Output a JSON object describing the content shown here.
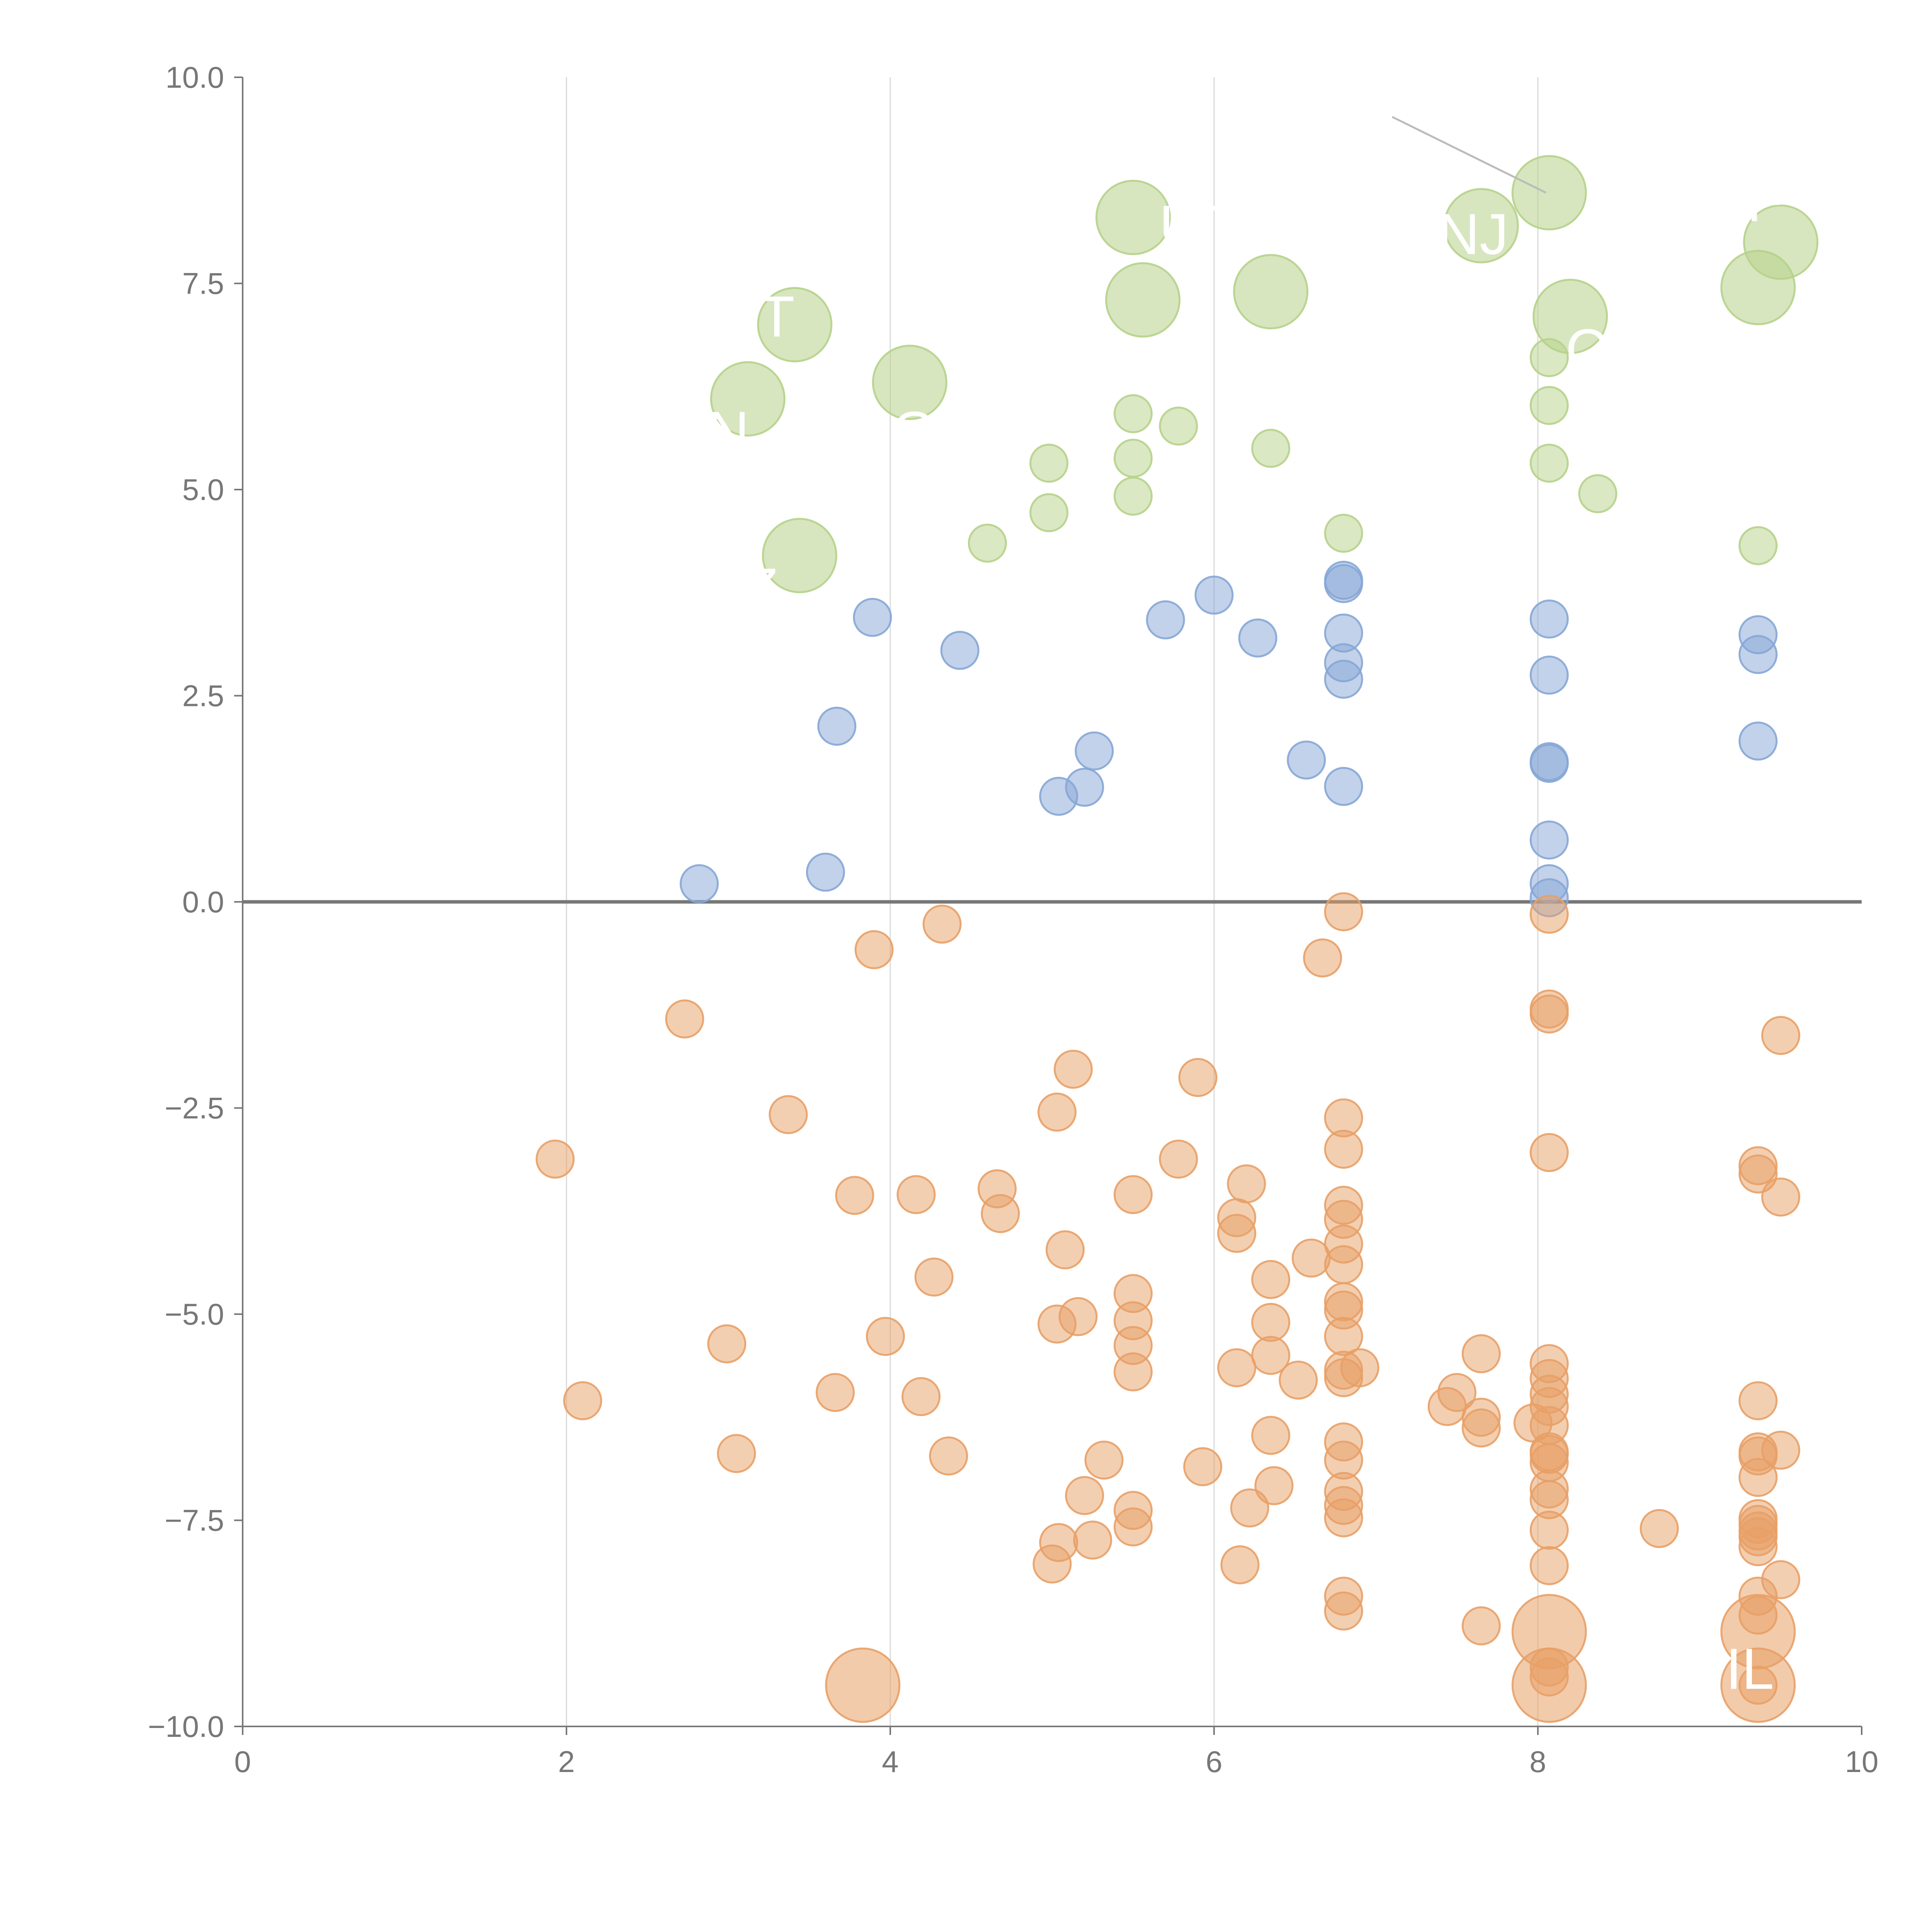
{
  "chart_data": {
    "type": "scatter",
    "title": "",
    "xlabel": "",
    "ylabel": "",
    "xlim": [
      0,
      10
    ],
    "ylim": [
      -10,
      10
    ],
    "xticks": [
      "0",
      "2",
      "4",
      "6",
      "8",
      "10"
    ],
    "yticks": [
      "−10.0",
      "−7.5",
      "−5.0",
      "−2.5",
      "0.0",
      "2.5",
      "5.0",
      "7.5",
      "10.0"
    ],
    "grid": "vertical gridlines at x tick positions",
    "reference_line": {
      "y": 0
    },
    "colors": {
      "green": "#b6d18a",
      "blue": "#86a6d6",
      "orange": "#e8a066"
    },
    "labels": [
      {
        "text": "UT",
        "x": 5.9,
        "y": 8.2
      },
      {
        "text": "NJ",
        "x": 7.6,
        "y": 8.1
      },
      {
        "text": "F",
        "x": 9.4,
        "y": 8.5
      },
      {
        "text": "T",
        "x": 3.3,
        "y": 7.1
      },
      {
        "text": "N",
        "x": 3.0,
        "y": 5.7
      },
      {
        "text": "IO",
        "x": 4.1,
        "y": 5.7
      },
      {
        "text": "C",
        "x": 8.3,
        "y": 6.7
      },
      {
        "text": "Z",
        "x": 3.2,
        "y": 3.8
      },
      {
        "text": "FIL",
        "x": 9.2,
        "y": -9.3
      }
    ],
    "series": [
      {
        "color": "green",
        "points": [
          [
            3.12,
            6.1,
            1
          ],
          [
            3.41,
            7.0,
            1
          ],
          [
            3.44,
            4.2,
            1
          ],
          [
            4.12,
            6.3,
            1
          ],
          [
            5.5,
            8.3,
            1
          ],
          [
            5.56,
            7.3,
            1
          ],
          [
            6.35,
            7.4,
            1
          ],
          [
            7.65,
            8.2,
            1
          ],
          [
            8.07,
            8.6,
            1
          ],
          [
            8.2,
            7.1,
            1
          ],
          [
            9.36,
            7.45,
            1
          ],
          [
            9.5,
            8.0,
            1
          ],
          [
            4.6,
            4.35,
            0
          ],
          [
            4.98,
            5.32,
            0
          ],
          [
            4.98,
            4.72,
            0
          ],
          [
            5.5,
            5.92,
            0
          ],
          [
            5.5,
            5.38,
            0
          ],
          [
            5.5,
            4.92,
            0
          ],
          [
            5.78,
            5.77,
            0
          ],
          [
            6.35,
            5.5,
            0
          ],
          [
            6.8,
            4.47,
            0
          ],
          [
            8.07,
            6.6,
            0
          ],
          [
            8.07,
            6.02,
            0
          ],
          [
            8.07,
            5.32,
            0
          ],
          [
            8.37,
            4.95,
            0
          ],
          [
            9.36,
            4.32,
            0
          ]
        ]
      },
      {
        "color": "blue",
        "points": [
          [
            2.82,
            0.22,
            0
          ],
          [
            3.6,
            0.36,
            0
          ],
          [
            3.67,
            2.13,
            0
          ],
          [
            3.89,
            3.45,
            0
          ],
          [
            4.43,
            3.05,
            0
          ],
          [
            5.04,
            1.28,
            0
          ],
          [
            5.2,
            1.39,
            0
          ],
          [
            5.26,
            1.83,
            0
          ],
          [
            5.7,
            3.42,
            0
          ],
          [
            6.0,
            3.72,
            0
          ],
          [
            6.27,
            3.2,
            0
          ],
          [
            6.57,
            1.72,
            0
          ],
          [
            6.8,
            3.9,
            0
          ],
          [
            6.8,
            3.86,
            0
          ],
          [
            6.8,
            3.26,
            0
          ],
          [
            6.8,
            2.9,
            0
          ],
          [
            6.8,
            2.7,
            0
          ],
          [
            6.8,
            1.4,
            0
          ],
          [
            8.07,
            3.43,
            0
          ],
          [
            8.07,
            2.75,
            0
          ],
          [
            8.07,
            1.7,
            0
          ],
          [
            8.07,
            1.68,
            0
          ],
          [
            8.07,
            0.75,
            0
          ],
          [
            8.07,
            0.22,
            0
          ],
          [
            8.07,
            0.05,
            0
          ],
          [
            9.36,
            3.24,
            0
          ],
          [
            9.36,
            3.0,
            0
          ],
          [
            9.36,
            1.95,
            0
          ]
        ]
      },
      {
        "color": "orange",
        "points": [
          [
            1.93,
            -3.12,
            0
          ],
          [
            2.1,
            -6.05,
            0
          ],
          [
            2.73,
            -1.42,
            0
          ],
          [
            2.99,
            -5.36,
            0
          ],
          [
            3.05,
            -6.69,
            0
          ],
          [
            3.37,
            -2.58,
            0
          ],
          [
            3.66,
            -5.95,
            0
          ],
          [
            3.78,
            -3.56,
            0
          ],
          [
            3.9,
            -0.58,
            0
          ],
          [
            3.97,
            -5.27,
            0
          ],
          [
            4.16,
            -3.55,
            0
          ],
          [
            4.19,
            -6.0,
            0
          ],
          [
            4.27,
            -4.55,
            0
          ],
          [
            4.32,
            -0.27,
            0
          ],
          [
            4.36,
            -6.72,
            0
          ],
          [
            4.66,
            -3.48,
            0
          ],
          [
            4.68,
            -3.78,
            0
          ],
          [
            5.0,
            -8.03,
            0
          ],
          [
            5.03,
            -2.55,
            0
          ],
          [
            5.03,
            -5.12,
            0
          ],
          [
            5.04,
            -7.77,
            0
          ],
          [
            5.08,
            -4.22,
            0
          ],
          [
            5.13,
            -2.03,
            0
          ],
          [
            5.16,
            -5.03,
            0
          ],
          [
            5.2,
            -7.2,
            0
          ],
          [
            5.25,
            -7.74,
            0
          ],
          [
            5.32,
            -6.77,
            0
          ],
          [
            5.5,
            -3.55,
            0
          ],
          [
            5.5,
            -4.75,
            0
          ],
          [
            5.5,
            -5.08,
            0
          ],
          [
            5.5,
            -5.38,
            0
          ],
          [
            5.5,
            -5.7,
            0
          ],
          [
            5.5,
            -7.38,
            0
          ],
          [
            5.5,
            -7.58,
            0
          ],
          [
            5.78,
            -3.12,
            0
          ],
          [
            5.9,
            -2.13,
            0
          ],
          [
            5.93,
            -6.85,
            0
          ],
          [
            6.14,
            -5.65,
            0
          ],
          [
            6.14,
            -3.83,
            0
          ],
          [
            6.14,
            -4.02,
            0
          ],
          [
            6.16,
            -8.04,
            0
          ],
          [
            6.2,
            -3.42,
            0
          ],
          [
            6.22,
            -7.35,
            0
          ],
          [
            6.35,
            -4.58,
            0
          ],
          [
            6.35,
            -5.1,
            0
          ],
          [
            6.35,
            -5.5,
            0
          ],
          [
            6.35,
            -6.47,
            0
          ],
          [
            6.37,
            -7.08,
            0
          ],
          [
            6.52,
            -5.8,
            0
          ],
          [
            6.6,
            -4.32,
            0
          ],
          [
            6.67,
            -0.68,
            0
          ],
          [
            6.8,
            -0.12,
            0
          ],
          [
            6.8,
            -2.62,
            0
          ],
          [
            6.8,
            -3.0,
            0
          ],
          [
            6.8,
            -3.68,
            0
          ],
          [
            6.8,
            -3.85,
            0
          ],
          [
            6.8,
            -4.15,
            0
          ],
          [
            6.8,
            -4.4,
            0
          ],
          [
            6.8,
            -4.85,
            0
          ],
          [
            6.8,
            -4.95,
            0
          ],
          [
            6.8,
            -5.27,
            0
          ],
          [
            6.8,
            -5.68,
            0
          ],
          [
            6.8,
            -5.77,
            0
          ],
          [
            6.8,
            -6.55,
            0
          ],
          [
            6.8,
            -6.77,
            0
          ],
          [
            6.8,
            -7.15,
            0
          ],
          [
            6.8,
            -7.32,
            0
          ],
          [
            6.8,
            -7.47,
            0
          ],
          [
            6.8,
            -8.42,
            0
          ],
          [
            6.8,
            -8.6,
            0
          ],
          [
            6.9,
            -5.65,
            0
          ],
          [
            7.44,
            -6.12,
            0
          ],
          [
            7.5,
            -5.95,
            0
          ],
          [
            7.65,
            -5.48,
            0
          ],
          [
            7.65,
            -6.25,
            0
          ],
          [
            7.65,
            -6.38,
            0
          ],
          [
            7.65,
            -8.78,
            0
          ],
          [
            7.97,
            -6.32,
            0
          ],
          [
            8.07,
            -0.15,
            0
          ],
          [
            8.07,
            -1.3,
            0
          ],
          [
            8.07,
            -1.36,
            0
          ],
          [
            8.07,
            -3.04,
            0
          ],
          [
            8.07,
            -5.6,
            0
          ],
          [
            8.07,
            -5.78,
            0
          ],
          [
            8.07,
            -5.97,
            0
          ],
          [
            8.07,
            -6.12,
            0
          ],
          [
            8.07,
            -6.35,
            0
          ],
          [
            8.07,
            -6.67,
            0
          ],
          [
            8.07,
            -6.7,
            0
          ],
          [
            8.07,
            -6.8,
            0
          ],
          [
            8.07,
            -7.12,
            0
          ],
          [
            8.07,
            -7.25,
            0
          ],
          [
            8.07,
            -7.62,
            0
          ],
          [
            8.07,
            -8.05,
            0
          ],
          [
            8.07,
            -8.85,
            1
          ],
          [
            8.07,
            -9.5,
            1
          ],
          [
            8.07,
            -9.28,
            0
          ],
          [
            8.07,
            -9.4,
            0
          ],
          [
            8.75,
            -7.6,
            0
          ],
          [
            9.36,
            -3.2,
            0
          ],
          [
            9.36,
            -3.3,
            0
          ],
          [
            9.36,
            -6.05,
            0
          ],
          [
            9.36,
            -6.67,
            0
          ],
          [
            9.36,
            -6.72,
            0
          ],
          [
            9.36,
            -6.98,
            0
          ],
          [
            9.36,
            -7.48,
            0
          ],
          [
            9.36,
            -7.55,
            0
          ],
          [
            9.36,
            -7.63,
            0
          ],
          [
            9.36,
            -7.7,
            0
          ],
          [
            9.36,
            -7.82,
            0
          ],
          [
            9.36,
            -8.42,
            0
          ],
          [
            9.36,
            -8.65,
            0
          ],
          [
            9.36,
            -8.85,
            1
          ],
          [
            9.36,
            -9.5,
            1
          ],
          [
            9.36,
            -9.5,
            0
          ],
          [
            9.5,
            -1.62,
            0
          ],
          [
            9.5,
            -3.58,
            0
          ],
          [
            9.5,
            -6.65,
            0
          ],
          [
            9.5,
            -8.22,
            0
          ],
          [
            3.83,
            -9.5,
            1
          ]
        ]
      }
    ]
  }
}
